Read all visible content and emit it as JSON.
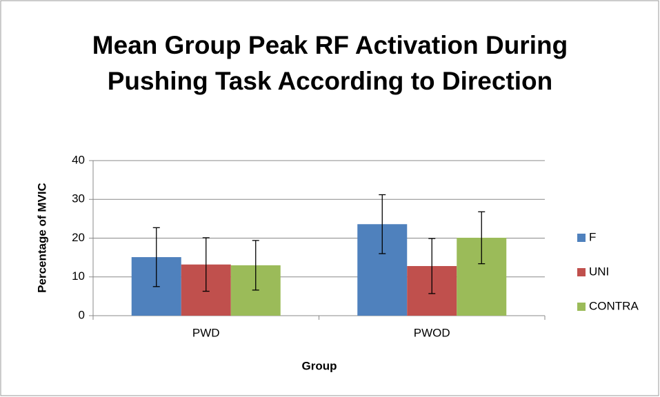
{
  "chart_data": {
    "type": "bar",
    "title": "Mean Group Peak RF Activation During Pushing Task According to Direction",
    "x_label": "Group",
    "y_label": "Percentage of MVIC",
    "categories": [
      "PWD",
      "PWOD"
    ],
    "series": [
      {
        "name": "F",
        "color": "#4f81bd",
        "values": [
          15.1,
          23.6
        ],
        "errors": [
          7.6,
          7.6
        ]
      },
      {
        "name": "UNI",
        "color": "#c0504d",
        "values": [
          13.2,
          12.8
        ],
        "errors": [
          6.9,
          7.1
        ]
      },
      {
        "name": "CONTRA",
        "color": "#9bbb59",
        "values": [
          13.0,
          20.1
        ],
        "errors": [
          6.4,
          6.7
        ]
      }
    ],
    "ylim": [
      0,
      40
    ],
    "yticks": [
      0,
      10,
      20,
      30,
      40
    ],
    "grid": true,
    "legend": "right"
  }
}
